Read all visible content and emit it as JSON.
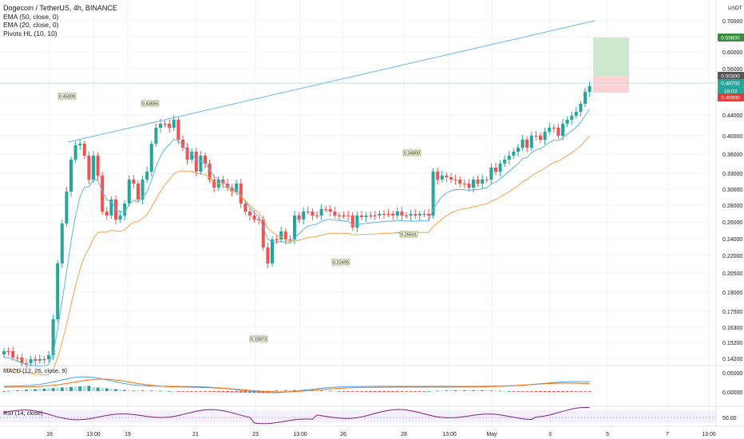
{
  "header": {
    "symbol_line": "Dogecoin / TetherUS, 4h, BINANCE",
    "indicator_1": "EMA (50, close, 0)",
    "indicator_2": "EMA (20, close, 0)",
    "indicator_3": "Pivots HL (10, 10)"
  },
  "price_axis": {
    "currency": "USDT",
    "ticks": [
      "0.70000",
      "0.65000",
      "0.60000",
      "0.56000",
      "0.52000",
      "0.48000",
      "0.44000",
      "0.40000",
      "0.36000",
      "0.33000",
      "0.30000",
      "0.28000",
      "0.26000",
      "0.24000",
      "0.22000",
      "0.20500",
      "0.19000",
      "0.17500",
      "0.16300",
      "0.15200",
      "0.14200"
    ],
    "tag_target": "0.59800",
    "tag_entry": "0.50300",
    "tag_last": "0.48702",
    "tag_countdown": "18:03",
    "tag_stop": "0.46900"
  },
  "pivot_labels": [
    "0.45000",
    "0.43656",
    "0.34800",
    "0.15873",
    "0.22405",
    "0.25631"
  ],
  "macd": {
    "label": "MACD (12, 26, close, 9)",
    "ticks": [
      "0.05000",
      "0.00000"
    ]
  },
  "rsi": {
    "label": "RSI (14, close)",
    "ticks": [
      "50.00"
    ]
  },
  "time_axis": {
    "ticks": [
      "16",
      "13:00",
      "19",
      "21",
      "23",
      "13:00",
      "26",
      "28",
      "13:00",
      "May",
      "3",
      "5",
      "7",
      "13:00"
    ]
  },
  "colors": {
    "up": "#26a69a",
    "down": "#ef5350",
    "ema20": "#5fb3e6",
    "ema50": "#f5a34a",
    "trendline": "#64b5f6",
    "macd_line": "#2962ff",
    "signal_line": "#ff6d00",
    "rsi_line": "#7e1f86",
    "target_zone": "#c8e6c9",
    "stop_zone": "#ffcdd2"
  }
}
